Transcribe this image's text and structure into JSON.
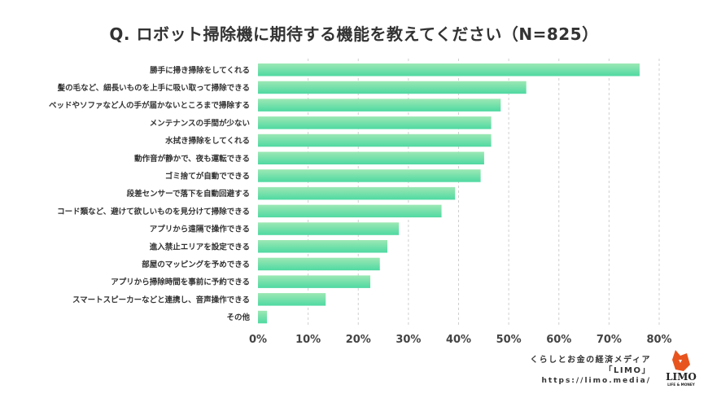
{
  "chart_data": {
    "type": "bar",
    "orientation": "horizontal",
    "title": "Q. ロボット掃除機に期待する機能を教えてください（N=825）",
    "categories": [
      "勝手に掃き掃除をしてくれる",
      "髪の毛など、細長いものを上手に吸い取って掃除できる",
      "ベッドやソファなど人の手が届かないところまで掃除する",
      "メンテナンスの手間が少ない",
      "水拭き掃除をしてくれる",
      "動作音が静かで、夜も運転できる",
      "ゴミ捨てが自動でできる",
      "段差センサーで落下を自動回避する",
      "コード類など、避けて欲しいものを見分けて掃除できる",
      "アプリから遠隔で操作できる",
      "進入禁止エリアを設定できる",
      "部屋のマッピングを予めできる",
      "アプリから掃除時間を事前に予約できる",
      "スマートスピーカーなどと連携し、音声操作できる",
      "その他"
    ],
    "values": [
      76.1,
      53.5,
      48.4,
      46.5,
      46.5,
      45.1,
      44.4,
      39.3,
      36.6,
      28.1,
      25.8,
      24.3,
      22.4,
      13.5,
      1.8
    ],
    "xlim": [
      0,
      80
    ],
    "xticks": [
      "0%",
      "10%",
      "20%",
      "30%",
      "40%",
      "50%",
      "60%",
      "70%",
      "80%"
    ],
    "xlabel": "",
    "ylabel": "",
    "grid": "vertical dashed",
    "colors": {
      "bar_top": "#9de8b4",
      "bar_bottom": "#4fd9a2",
      "grid": "#cfcfcf"
    }
  },
  "footer": {
    "line1": "くらしとお金の経済メディア",
    "line2": "「LIMO」",
    "url": "https://limo.media/"
  },
  "logo": {
    "name": "LIMO",
    "tagline": "LIFE & MONEY"
  }
}
